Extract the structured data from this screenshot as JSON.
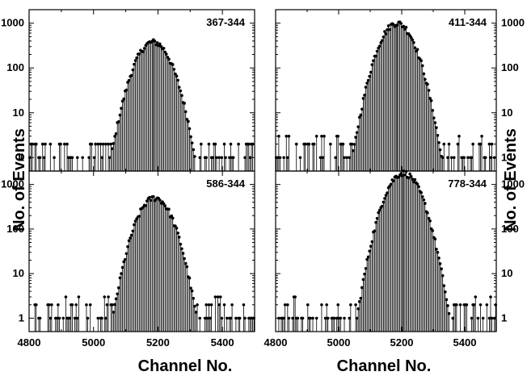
{
  "figure": {
    "ylabel": "No. of Events",
    "xlabel": "Channel No."
  },
  "chart_data": [
    {
      "type": "scatter",
      "title": "367-344",
      "xlim": [
        4800,
        5500
      ],
      "ylim": [
        0.5,
        2000
      ],
      "yscale": "log",
      "xticks": [
        4800,
        5000,
        5200,
        5400
      ],
      "yticks": [
        1,
        10,
        100,
        1000
      ],
      "peak_center": 5185,
      "peak_height": 380,
      "peak_sigma": 38,
      "peak_range": [
        5050,
        5330
      ],
      "centroid_line_x": 5185,
      "background_range": [
        4800,
        5500
      ],
      "background_counts": [
        1,
        2
      ]
    },
    {
      "type": "scatter",
      "title": "411-344",
      "xlim": [
        4800,
        5500
      ],
      "ylim": [
        0.5,
        2000
      ],
      "yscale": "log",
      "xticks": [
        4800,
        5000,
        5200,
        5400
      ],
      "yticks": [
        1,
        10,
        100,
        1000
      ],
      "peak_center": 5185,
      "peak_height": 1000,
      "peak_sigma": 38,
      "peak_range": [
        5000,
        5350
      ],
      "centroid_line_x": 5185,
      "background_range": [
        4800,
        5500
      ],
      "background_counts": [
        1,
        2,
        3
      ]
    },
    {
      "type": "scatter",
      "title": "586-344",
      "xlim": [
        4800,
        5500
      ],
      "ylim": [
        0.5,
        2000
      ],
      "yscale": "log",
      "xticks": [
        4800,
        5000,
        5200,
        5400
      ],
      "yticks": [
        1,
        10,
        100,
        1000
      ],
      "peak_center": 5190,
      "peak_height": 500,
      "peak_sigma": 37,
      "peak_range": [
        5050,
        5330
      ],
      "centroid_line_x": 5190,
      "background_range": [
        4800,
        5500
      ],
      "background_counts": [
        1,
        2,
        3
      ]
    },
    {
      "type": "scatter",
      "title": "778-344",
      "xlim": [
        4800,
        5500
      ],
      "ylim": [
        0.5,
        2000
      ],
      "yscale": "log",
      "xticks": [
        4800,
        5000,
        5200,
        5400
      ],
      "yticks": [
        1,
        10,
        100,
        1000
      ],
      "peak_center": 5205,
      "peak_height": 1800,
      "peak_sigma": 38,
      "peak_range": [
        5020,
        5390
      ],
      "centroid_line_x": 5205,
      "background_range": [
        4800,
        5500
      ],
      "background_counts": [
        1,
        2,
        3
      ]
    }
  ]
}
